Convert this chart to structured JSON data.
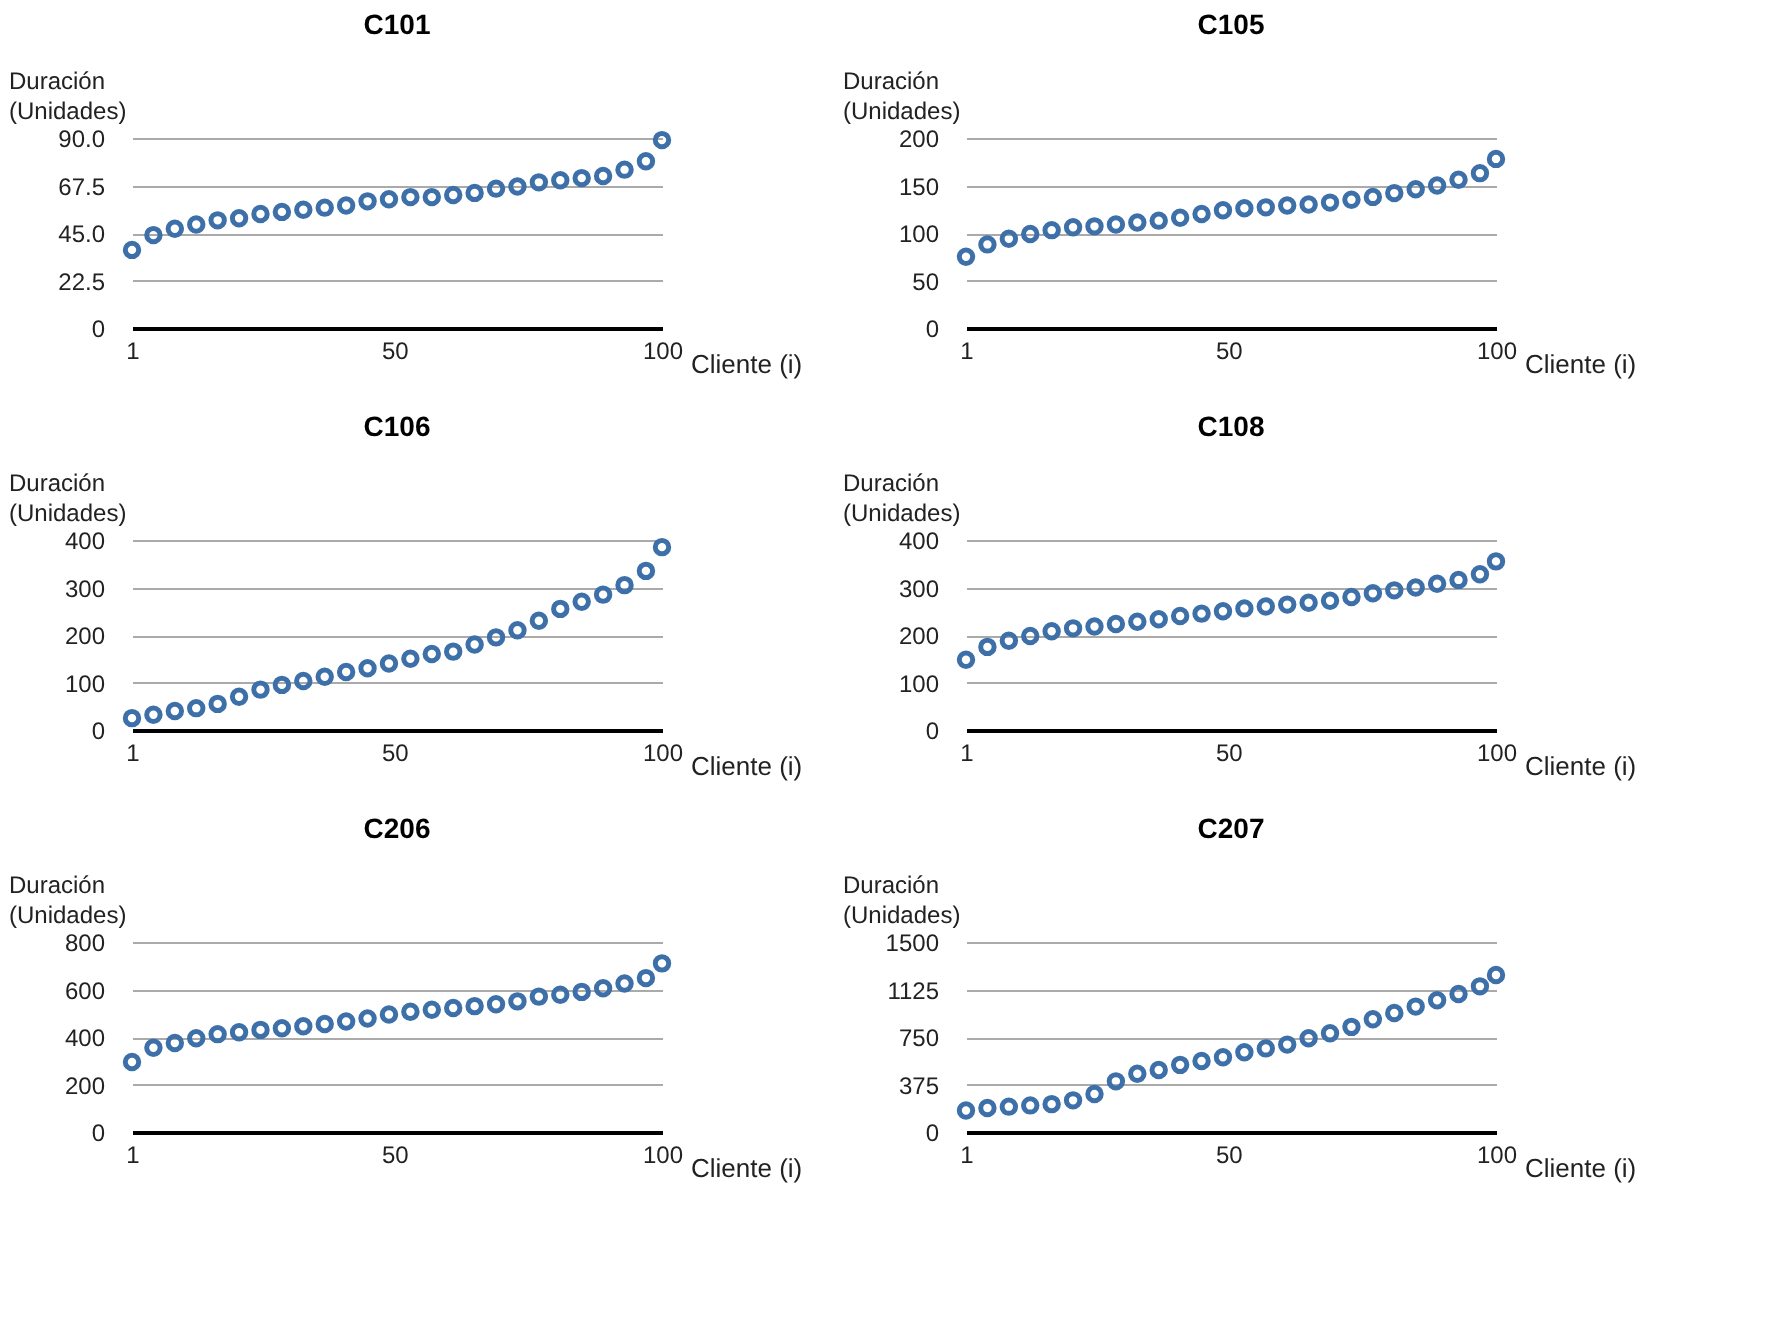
{
  "chart_data": [
    {
      "type": "scatter",
      "title": "C101",
      "xlabel": "Cliente (i)",
      "ylabel": "Duración (Unidades)",
      "x": [
        1,
        5,
        9,
        13,
        17,
        21,
        25,
        29,
        33,
        37,
        41,
        45,
        49,
        53,
        57,
        61,
        65,
        69,
        73,
        77,
        81,
        85,
        89,
        93,
        97,
        100
      ],
      "xlim": [
        1,
        100
      ],
      "xticks": [
        1,
        50,
        100
      ],
      "ylim": [
        0,
        90
      ],
      "yticks": [
        0,
        22.5,
        {
          "value": 45,
          "label": "45.0"
        },
        67.5,
        {
          "value": 90,
          "label": "90.0"
        }
      ],
      "grid": "y",
      "marker": "circle",
      "series": [
        {
          "color": "#3d6fa8",
          "values": [
            37,
            44,
            47,
            49,
            51,
            52,
            54,
            55,
            56,
            57,
            58,
            60,
            61,
            62,
            62,
            63,
            64,
            66,
            67,
            69,
            70,
            71,
            72,
            75,
            79,
            89
          ]
        }
      ]
    },
    {
      "type": "scatter",
      "title": "C105",
      "xlabel": "Cliente (i)",
      "ylabel": "Duración (Unidades)",
      "x": [
        1,
        5,
        9,
        13,
        17,
        21,
        25,
        29,
        33,
        37,
        41,
        45,
        49,
        53,
        57,
        61,
        65,
        69,
        73,
        77,
        81,
        85,
        89,
        93,
        97,
        100
      ],
      "xlim": [
        1,
        100
      ],
      "xticks": [
        1,
        50,
        100
      ],
      "ylim": [
        0,
        200
      ],
      "yticks": [
        0,
        50,
        100,
        150,
        200
      ],
      "grid": "y",
      "marker": "circle",
      "series": [
        {
          "color": "#3d6fa8",
          "values": [
            75,
            88,
            94,
            99,
            103,
            106,
            107,
            109,
            111,
            113,
            116,
            120,
            124,
            126,
            127,
            129,
            130,
            132,
            135,
            138,
            142,
            146,
            150,
            156,
            163,
            178
          ]
        }
      ]
    },
    {
      "type": "scatter",
      "title": "C106",
      "xlabel": "Cliente (i)",
      "ylabel": "Duración (Unidades)",
      "x": [
        1,
        5,
        9,
        13,
        17,
        21,
        25,
        29,
        33,
        37,
        41,
        45,
        49,
        53,
        57,
        61,
        65,
        69,
        73,
        77,
        81,
        85,
        89,
        93,
        97,
        100
      ],
      "xlim": [
        1,
        100
      ],
      "xticks": [
        1,
        50,
        100
      ],
      "ylim": [
        0,
        400
      ],
      "yticks": [
        0,
        100,
        200,
        300,
        400
      ],
      "grid": "y",
      "marker": "circle",
      "series": [
        {
          "color": "#3d6fa8",
          "values": [
            25,
            32,
            40,
            46,
            55,
            70,
            85,
            95,
            103,
            112,
            122,
            130,
            140,
            150,
            160,
            165,
            180,
            195,
            210,
            230,
            255,
            270,
            285,
            305,
            335,
            385
          ]
        }
      ]
    },
    {
      "type": "scatter",
      "title": "C108",
      "xlabel": "Cliente (i)",
      "ylabel": "Duración (Unidades)",
      "x": [
        1,
        5,
        9,
        13,
        17,
        21,
        25,
        29,
        33,
        37,
        41,
        45,
        49,
        53,
        57,
        61,
        65,
        69,
        73,
        77,
        81,
        85,
        89,
        93,
        97,
        100
      ],
      "xlim": [
        1,
        100
      ],
      "xticks": [
        1,
        50,
        100
      ],
      "ylim": [
        0,
        400
      ],
      "yticks": [
        0,
        100,
        200,
        300,
        400
      ],
      "grid": "y",
      "marker": "circle",
      "series": [
        {
          "color": "#3d6fa8",
          "values": [
            148,
            175,
            188,
            198,
            208,
            214,
            218,
            223,
            228,
            233,
            240,
            245,
            250,
            256,
            260,
            264,
            268,
            272,
            280,
            288,
            294,
            300,
            308,
            316,
            328,
            355
          ]
        }
      ]
    },
    {
      "type": "scatter",
      "title": "C206",
      "xlabel": "Cliente (i)",
      "ylabel": "Duración (Unidades)",
      "x": [
        1,
        5,
        9,
        13,
        17,
        21,
        25,
        29,
        33,
        37,
        41,
        45,
        49,
        53,
        57,
        61,
        65,
        69,
        73,
        77,
        81,
        85,
        89,
        93,
        97,
        100
      ],
      "xlim": [
        1,
        100
      ],
      "xticks": [
        1,
        50,
        100
      ],
      "ylim": [
        0,
        800
      ],
      "yticks": [
        0,
        200,
        400,
        600,
        800
      ],
      "grid": "y",
      "marker": "circle",
      "series": [
        {
          "color": "#3d6fa8",
          "values": [
            295,
            355,
            375,
            395,
            412,
            420,
            430,
            437,
            445,
            455,
            465,
            478,
            495,
            506,
            515,
            522,
            530,
            538,
            550,
            570,
            578,
            590,
            605,
            625,
            648,
            710
          ]
        }
      ]
    },
    {
      "type": "scatter",
      "title": "C207",
      "xlabel": "Cliente (i)",
      "ylabel": "Duración (Unidades)",
      "x": [
        1,
        5,
        9,
        13,
        17,
        21,
        25,
        29,
        33,
        37,
        41,
        45,
        49,
        53,
        57,
        61,
        65,
        69,
        73,
        77,
        81,
        85,
        89,
        93,
        97,
        100
      ],
      "xlim": [
        1,
        100
      ],
      "xticks": [
        1,
        50,
        100
      ],
      "ylim": [
        0,
        1500
      ],
      "yticks": [
        0,
        375,
        750,
        1125,
        1500
      ],
      "grid": "y",
      "marker": "circle",
      "series": [
        {
          "color": "#3d6fa8",
          "values": [
            170,
            190,
            200,
            210,
            220,
            250,
            300,
            400,
            460,
            490,
            530,
            560,
            590,
            630,
            660,
            690,
            740,
            780,
            830,
            890,
            940,
            990,
            1040,
            1090,
            1150,
            1240
          ]
        }
      ]
    }
  ]
}
